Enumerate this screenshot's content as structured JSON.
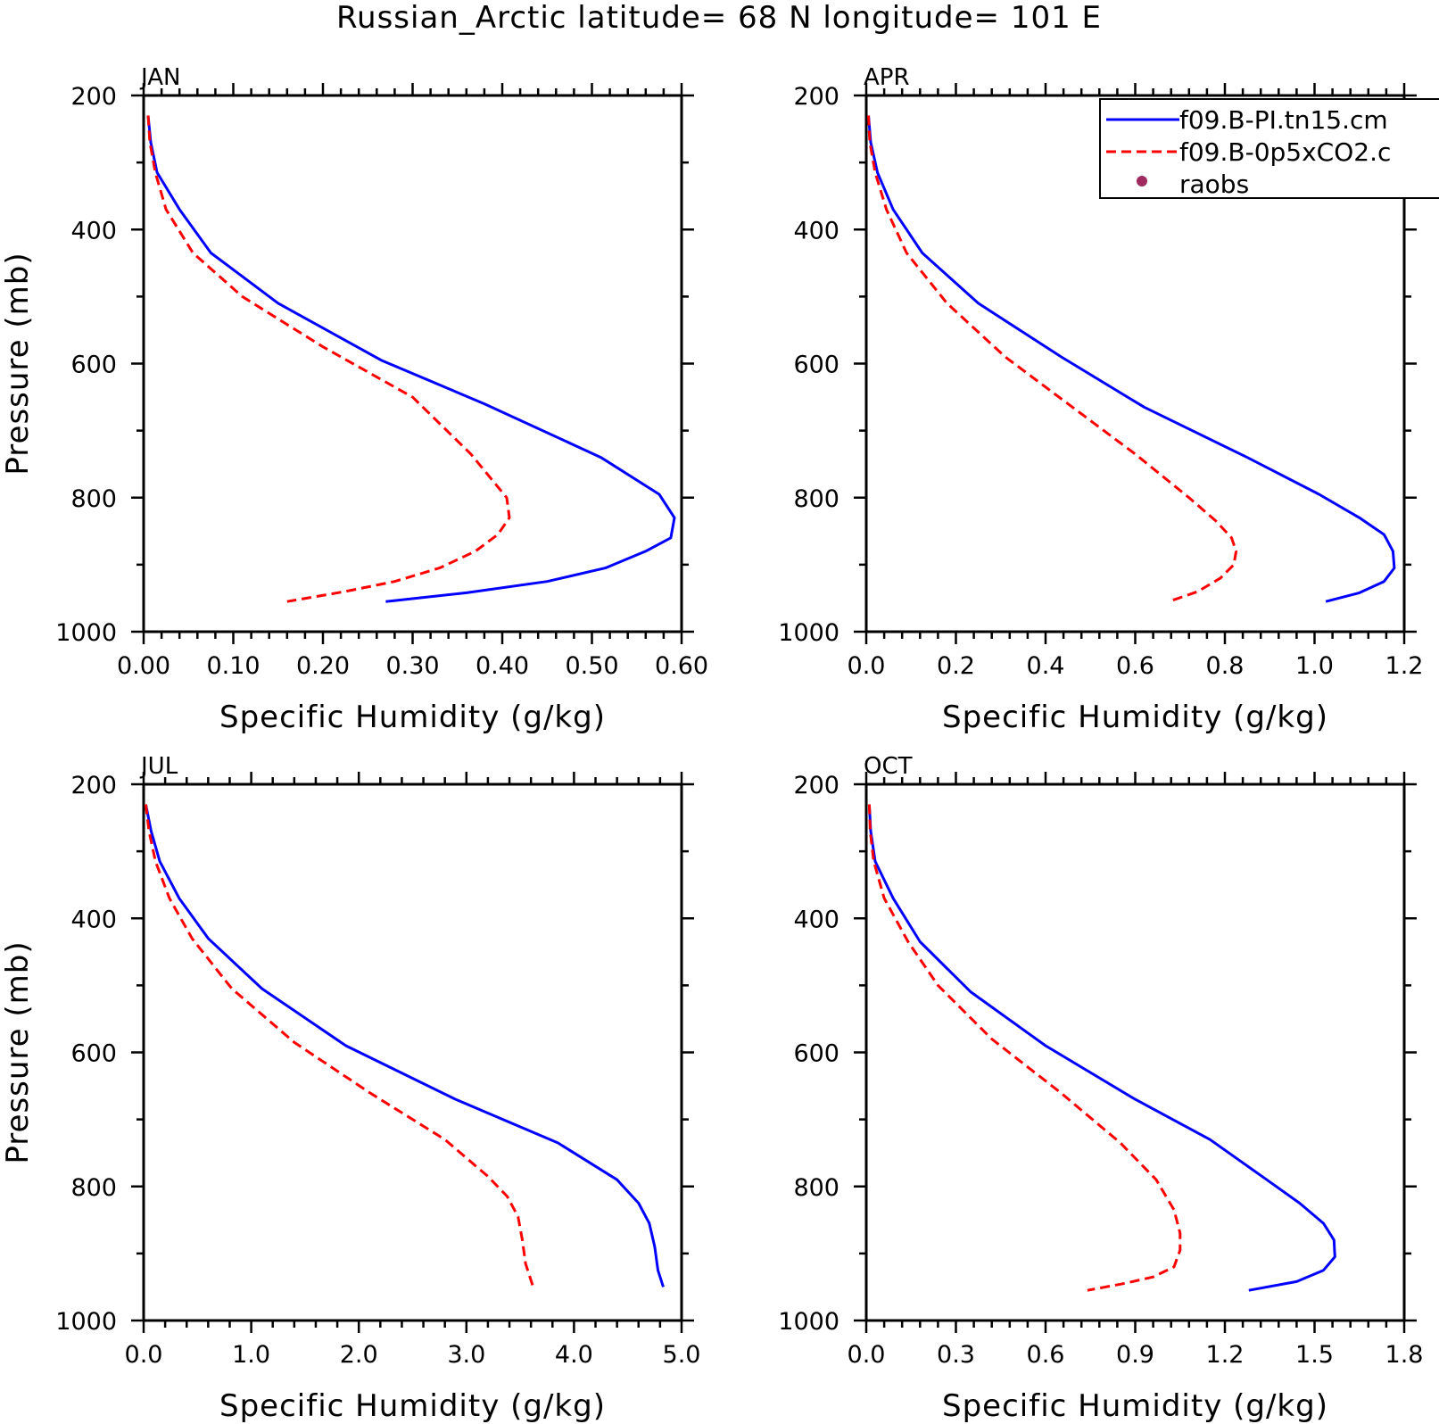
{
  "title": "Russian_Arctic  latitude= 68 N longitude= 101 E",
  "ylabel": "Pressure (mb)",
  "xlabel": "Specific Humidity (g/kg)",
  "legend": [
    {
      "label": "f09.B-PI.tn15.cm",
      "color": "#0000ff",
      "style": "solid"
    },
    {
      "label": "f09.B-0p5xCO2.c",
      "color": "#ff0000",
      "style": "dashed"
    },
    {
      "label": "raobs",
      "color": "#9e2a60",
      "style": "marker"
    }
  ],
  "chart_data": [
    {
      "type": "line",
      "title": "JAN",
      "xlabel": "Specific Humidity (g/kg)",
      "ylabel": "Pressure (mb)",
      "xlim": [
        0,
        0.6
      ],
      "ylim": [
        200,
        1000
      ],
      "y_inverted": true,
      "xticks": [
        0,
        0.1,
        0.2,
        0.3,
        0.4,
        0.5,
        0.6
      ],
      "xtick_labels": [
        "0.00",
        "0.10",
        "0.20",
        "0.30",
        "0.40",
        "0.50",
        "0.60"
      ],
      "yticks": [
        200,
        400,
        600,
        800,
        1000
      ],
      "grid": false,
      "series": [
        {
          "name": "f09.B-PI.tn15.cm",
          "color": "#0000ff",
          "style": "solid",
          "points": [
            [
              0.005,
              230
            ],
            [
              0.008,
              270
            ],
            [
              0.015,
              315
            ],
            [
              0.04,
              370
            ],
            [
              0.075,
              435
            ],
            [
              0.15,
              510
            ],
            [
              0.265,
              595
            ],
            [
              0.38,
              660
            ],
            [
              0.51,
              740
            ],
            [
              0.575,
              795
            ],
            [
              0.592,
              830
            ],
            [
              0.588,
              860
            ],
            [
              0.56,
              880
            ],
            [
              0.515,
              905
            ],
            [
              0.45,
              925
            ],
            [
              0.36,
              942
            ],
            [
              0.27,
              955
            ]
          ]
        },
        {
          "name": "f09.B-0p5xCO2.c",
          "color": "#ff0000",
          "style": "dashed",
          "points": [
            [
              0.005,
              230
            ],
            [
              0.007,
              270
            ],
            [
              0.013,
              315
            ],
            [
              0.025,
              370
            ],
            [
              0.055,
              435
            ],
            [
              0.11,
              500
            ],
            [
              0.2,
              575
            ],
            [
              0.3,
              650
            ],
            [
              0.365,
              735
            ],
            [
              0.405,
              800
            ],
            [
              0.408,
              830
            ],
            [
              0.395,
              855
            ],
            [
              0.37,
              880
            ],
            [
              0.33,
              905
            ],
            [
              0.28,
              925
            ],
            [
              0.225,
              940
            ],
            [
              0.16,
              955
            ]
          ]
        }
      ]
    },
    {
      "type": "line",
      "title": "APR",
      "xlabel": "Specific Humidity (g/kg)",
      "ylabel": "Pressure (mb)",
      "xlim": [
        0,
        1.2
      ],
      "ylim": [
        200,
        1000
      ],
      "y_inverted": true,
      "xticks": [
        0,
        0.2,
        0.4,
        0.6,
        0.8,
        1.0,
        1.2
      ],
      "xtick_labels": [
        "0.0",
        "0.2",
        "0.4",
        "0.6",
        "0.8",
        "1.0",
        "1.2"
      ],
      "yticks": [
        200,
        400,
        600,
        800,
        1000
      ],
      "grid": false,
      "series": [
        {
          "name": "f09.B-PI.tn15.cm",
          "color": "#0000ff",
          "style": "solid",
          "points": [
            [
              0.005,
              230
            ],
            [
              0.01,
              270
            ],
            [
              0.025,
              315
            ],
            [
              0.06,
              370
            ],
            [
              0.125,
              435
            ],
            [
              0.25,
              510
            ],
            [
              0.435,
              590
            ],
            [
              0.62,
              665
            ],
            [
              0.85,
              740
            ],
            [
              1.01,
              795
            ],
            [
              1.1,
              830
            ],
            [
              1.155,
              855
            ],
            [
              1.175,
              880
            ],
            [
              1.178,
              905
            ],
            [
              1.155,
              925
            ],
            [
              1.1,
              942
            ],
            [
              1.025,
              955
            ]
          ]
        },
        {
          "name": "f09.B-0p5xCO2.c",
          "color": "#ff0000",
          "style": "dashed",
          "points": [
            [
              0.005,
              230
            ],
            [
              0.008,
              270
            ],
            [
              0.02,
              315
            ],
            [
              0.045,
              370
            ],
            [
              0.09,
              435
            ],
            [
              0.18,
              510
            ],
            [
              0.31,
              590
            ],
            [
              0.45,
              660
            ],
            [
              0.6,
              735
            ],
            [
              0.72,
              800
            ],
            [
              0.78,
              835
            ],
            [
              0.815,
              860
            ],
            [
              0.825,
              880
            ],
            [
              0.82,
              900
            ],
            [
              0.79,
              920
            ],
            [
              0.74,
              940
            ],
            [
              0.675,
              955
            ]
          ]
        }
      ]
    },
    {
      "type": "line",
      "title": "JUL",
      "xlabel": "Specific Humidity (g/kg)",
      "ylabel": "Pressure (mb)",
      "xlim": [
        0,
        5.0
      ],
      "ylim": [
        200,
        1000
      ],
      "y_inverted": true,
      "xticks": [
        0,
        1,
        2,
        3,
        4,
        5
      ],
      "xtick_labels": [
        "0.0",
        "1.0",
        "2.0",
        "3.0",
        "4.0",
        "5.0"
      ],
      "yticks": [
        200,
        400,
        600,
        800,
        1000
      ],
      "grid": false,
      "series": [
        {
          "name": "f09.B-PI.tn15.cm",
          "color": "#0000ff",
          "style": "solid",
          "points": [
            [
              0.02,
              230
            ],
            [
              0.07,
              270
            ],
            [
              0.15,
              315
            ],
            [
              0.33,
              370
            ],
            [
              0.6,
              430
            ],
            [
              1.1,
              505
            ],
            [
              1.88,
              590
            ],
            [
              2.9,
              670
            ],
            [
              3.85,
              735
            ],
            [
              4.4,
              790
            ],
            [
              4.6,
              825
            ],
            [
              4.7,
              855
            ],
            [
              4.75,
              890
            ],
            [
              4.78,
              925
            ],
            [
              4.83,
              950
            ]
          ]
        },
        {
          "name": "f09.B-0p5xCO2.c",
          "color": "#ff0000",
          "style": "dashed",
          "points": [
            [
              0.02,
              230
            ],
            [
              0.05,
              270
            ],
            [
              0.11,
              315
            ],
            [
              0.24,
              370
            ],
            [
              0.45,
              430
            ],
            [
              0.82,
              505
            ],
            [
              1.4,
              585
            ],
            [
              2.1,
              660
            ],
            [
              2.8,
              730
            ],
            [
              3.2,
              785
            ],
            [
              3.38,
              815
            ],
            [
              3.48,
              845
            ],
            [
              3.52,
              880
            ],
            [
              3.55,
              915
            ],
            [
              3.62,
              950
            ]
          ]
        }
      ]
    },
    {
      "type": "line",
      "title": "OCT",
      "xlabel": "Specific Humidity (g/kg)",
      "ylabel": "Pressure (mb)",
      "xlim": [
        0,
        1.8
      ],
      "ylim": [
        200,
        1000
      ],
      "y_inverted": true,
      "xticks": [
        0,
        0.3,
        0.6,
        0.9,
        1.2,
        1.5,
        1.8
      ],
      "xtick_labels": [
        "0.0",
        "0.3",
        "0.6",
        "0.9",
        "1.2",
        "1.5",
        "1.8"
      ],
      "yticks": [
        200,
        400,
        600,
        800,
        1000
      ],
      "grid": false,
      "series": [
        {
          "name": "f09.B-PI.tn15.cm",
          "color": "#0000ff",
          "style": "solid",
          "points": [
            [
              0.01,
              230
            ],
            [
              0.015,
              270
            ],
            [
              0.03,
              315
            ],
            [
              0.09,
              370
            ],
            [
              0.18,
              435
            ],
            [
              0.35,
              510
            ],
            [
              0.6,
              590
            ],
            [
              0.9,
              670
            ],
            [
              1.15,
              730
            ],
            [
              1.34,
              790
            ],
            [
              1.45,
              825
            ],
            [
              1.53,
              855
            ],
            [
              1.565,
              880
            ],
            [
              1.568,
              905
            ],
            [
              1.53,
              925
            ],
            [
              1.44,
              942
            ],
            [
              1.28,
              955
            ]
          ]
        },
        {
          "name": "f09.B-0p5xCO2.c",
          "color": "#ff0000",
          "style": "dashed",
          "points": [
            [
              0.01,
              230
            ],
            [
              0.013,
              270
            ],
            [
              0.025,
              315
            ],
            [
              0.06,
              370
            ],
            [
              0.14,
              435
            ],
            [
              0.24,
              500
            ],
            [
              0.42,
              580
            ],
            [
              0.65,
              660
            ],
            [
              0.85,
              735
            ],
            [
              0.97,
              790
            ],
            [
              1.03,
              835
            ],
            [
              1.05,
              870
            ],
            [
              1.05,
              895
            ],
            [
              1.03,
              920
            ],
            [
              0.96,
              935
            ],
            [
              0.86,
              945
            ],
            [
              0.74,
              955
            ]
          ]
        }
      ]
    }
  ]
}
